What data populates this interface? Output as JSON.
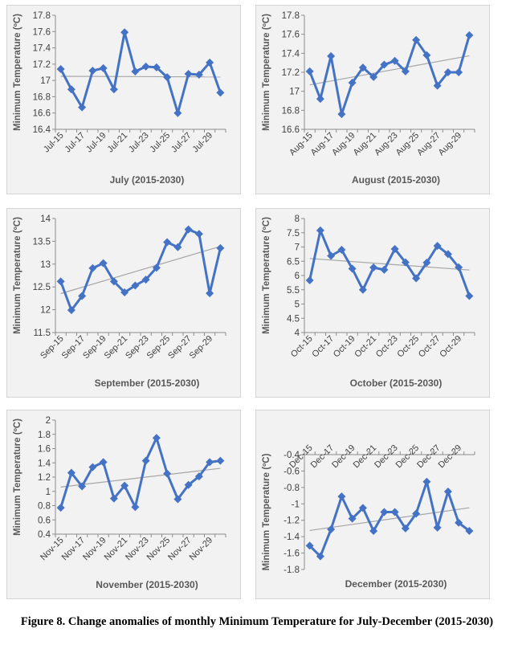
{
  "figure": {
    "caption": "Figure 8. Change anomalies of monthly Minimum Temperature for July-December (2015-2030)"
  },
  "style": {
    "series_color": "#4472c4",
    "trend_color": "#a6a6a6",
    "panel_background": "#f2f2f2",
    "grid": false
  },
  "chart_data": [
    {
      "type": "line",
      "ylabel": "Minimum Temperature (ºC)",
      "xlabel": "July (2015-2030)",
      "ylim": [
        16.4,
        17.8
      ],
      "yticks": [
        "16.4",
        "16.6",
        "16.8",
        "17",
        "17.2",
        "17.4",
        "17.6",
        "17.8"
      ],
      "categories": [
        "Jul-15",
        "Jul-16",
        "Jul-17",
        "Jul-18",
        "Jul-19",
        "Jul-20",
        "Jul-21",
        "Jul-22",
        "Jul-23",
        "Jul-24",
        "Jul-25",
        "Jul-26",
        "Jul-27",
        "Jul-28",
        "Jul-29",
        "Jul-30"
      ],
      "tick_labels": [
        "Jul-15",
        "Jul-17",
        "Jul-19",
        "Jul-21",
        "Jul-23",
        "Jul-25",
        "Jul-27",
        "Jul-29"
      ],
      "values": [
        17.14,
        16.89,
        16.67,
        17.12,
        17.15,
        16.89,
        17.59,
        17.11,
        17.17,
        17.16,
        17.04,
        16.6,
        17.08,
        17.07,
        17.22,
        16.85
      ],
      "trendline": "linear",
      "xaxis_at_top": false
    },
    {
      "type": "line",
      "ylabel": "Minimum Temperature (ºC)",
      "xlabel": "August (2015-2030)",
      "ylim": [
        16.6,
        17.8
      ],
      "yticks": [
        "16.6",
        "16.8",
        "17",
        "17.2",
        "17.4",
        "17.6",
        "17.8"
      ],
      "categories": [
        "Aug-15",
        "Aug-16",
        "Aug-17",
        "Aug-18",
        "Aug-19",
        "Aug-20",
        "Aug-21",
        "Aug-22",
        "Aug-23",
        "Aug-24",
        "Aug-25",
        "Aug-26",
        "Aug-27",
        "Aug-28",
        "Aug-29",
        "Aug-30"
      ],
      "tick_labels": [
        "Aug-15",
        "Aug-17",
        "Aug-19",
        "Aug-21",
        "Aug-23",
        "Aug-25",
        "Aug-27",
        "Aug-29"
      ],
      "values": [
        17.21,
        16.92,
        17.37,
        16.76,
        17.09,
        17.25,
        17.15,
        17.28,
        17.32,
        17.21,
        17.54,
        17.38,
        17.06,
        17.2,
        17.2,
        17.59
      ],
      "trendline": "linear",
      "xaxis_at_top": false
    },
    {
      "type": "line",
      "ylabel": "Minimum Temperature (ºC)",
      "xlabel": "September (2015-2030)",
      "ylim": [
        11.5,
        14
      ],
      "yticks": [
        "11.5",
        "12",
        "12.5",
        "13",
        "13.5",
        "14"
      ],
      "categories": [
        "Sep-15",
        "Sep-16",
        "Sep-17",
        "Sep-18",
        "Sep-19",
        "Sep-20",
        "Sep-21",
        "Sep-22",
        "Sep-23",
        "Sep-24",
        "Sep-25",
        "Sep-26",
        "Sep-27",
        "Sep-28",
        "Sep-29",
        "Sep-30"
      ],
      "tick_labels": [
        "Sep-15",
        "Sep-17",
        "Sep-19",
        "Sep-21",
        "Sep-23",
        "Sep-25",
        "Sep-27",
        "Sep-29"
      ],
      "values": [
        12.62,
        11.99,
        12.3,
        12.91,
        13.02,
        12.62,
        12.38,
        12.53,
        12.66,
        12.92,
        13.48,
        13.37,
        13.76,
        13.66,
        12.36,
        13.35
      ],
      "trendline": "linear",
      "xaxis_at_top": false
    },
    {
      "type": "line",
      "ylabel": "Minimum Temperature (ºC)",
      "xlabel": "October (2015-2030)",
      "ylim": [
        4,
        8
      ],
      "yticks": [
        "4",
        "4.5",
        "5",
        "5.5",
        "6",
        "6.5",
        "7",
        "7.5",
        "8"
      ],
      "categories": [
        "Oct-15",
        "Oct-16",
        "Oct-17",
        "Oct-18",
        "Oct-19",
        "Oct-20",
        "Oct-21",
        "Oct-22",
        "Oct-23",
        "Oct-24",
        "Oct-25",
        "Oct-26",
        "Oct-27",
        "Oct-28",
        "Oct-29",
        "Oct-30"
      ],
      "tick_labels": [
        "Oct-15",
        "Oct-17",
        "Oct-19",
        "Oct-21",
        "Oct-23",
        "Oct-25",
        "Oct-27",
        "Oct-29"
      ],
      "values": [
        5.83,
        7.58,
        6.69,
        6.9,
        6.24,
        5.5,
        6.28,
        6.2,
        6.93,
        6.46,
        5.9,
        6.45,
        7.04,
        6.75,
        6.29,
        5.28
      ],
      "trendline": "linear",
      "xaxis_at_top": false
    },
    {
      "type": "line",
      "ylabel": "Minimum Temperature (ºC)",
      "xlabel": "November (2015-2030)",
      "ylim": [
        0.4,
        2
      ],
      "yticks": [
        "0.4",
        "0.6",
        "0.8",
        "1",
        "1.2",
        "1.4",
        "1.6",
        "1.8",
        "2"
      ],
      "categories": [
        "Nov-15",
        "Nov-16",
        "Nov-17",
        "Nov-18",
        "Nov-19",
        "Nov-20",
        "Nov-21",
        "Nov-22",
        "Nov-23",
        "Nov-24",
        "Nov-25",
        "Nov-26",
        "Nov-27",
        "Nov-28",
        "Nov-29",
        "Nov-30"
      ],
      "tick_labels": [
        "Nov-15",
        "Nov-17",
        "Nov-19",
        "Nov-21",
        "Nov-23",
        "Nov-25",
        "Nov-27",
        "Nov-29"
      ],
      "values": [
        0.77,
        1.26,
        1.07,
        1.34,
        1.41,
        0.9,
        1.08,
        0.78,
        1.43,
        1.75,
        1.25,
        0.89,
        1.09,
        1.21,
        1.41,
        1.43
      ],
      "trendline": "linear",
      "xaxis_at_top": false
    },
    {
      "type": "line",
      "ylabel": "Minimum Temperature (ºC)",
      "xlabel": "December (2015-2030)",
      "ylim": [
        -1.8,
        -0.4
      ],
      "yticks": [
        "-1.8",
        "-1.6",
        "-1.4",
        "-1.2",
        "-1",
        "-0.8",
        "-0.6",
        "-0.4"
      ],
      "categories": [
        "Dec-15",
        "Dec-16",
        "Dec-17",
        "Dec-18",
        "Dec-19",
        "Dec-20",
        "Dec-21",
        "Dec-22",
        "Dec-23",
        "Dec-24",
        "Dec-25",
        "Dec-26",
        "Dec-27",
        "Dec-28",
        "Dec-29",
        "Dec-30"
      ],
      "tick_labels": [
        "Dec-15",
        "Dec-17",
        "Dec-19",
        "Dec-21",
        "Dec-23",
        "Dec-25",
        "Dec-27",
        "Dec-29"
      ],
      "values": [
        -1.51,
        -1.64,
        -1.31,
        -0.91,
        -1.18,
        -1.05,
        -1.33,
        -1.1,
        -1.1,
        -1.3,
        -1.12,
        -0.73,
        -1.29,
        -0.85,
        -1.23,
        -1.33
      ],
      "trendline": "linear",
      "xaxis_at_top": true
    }
  ]
}
